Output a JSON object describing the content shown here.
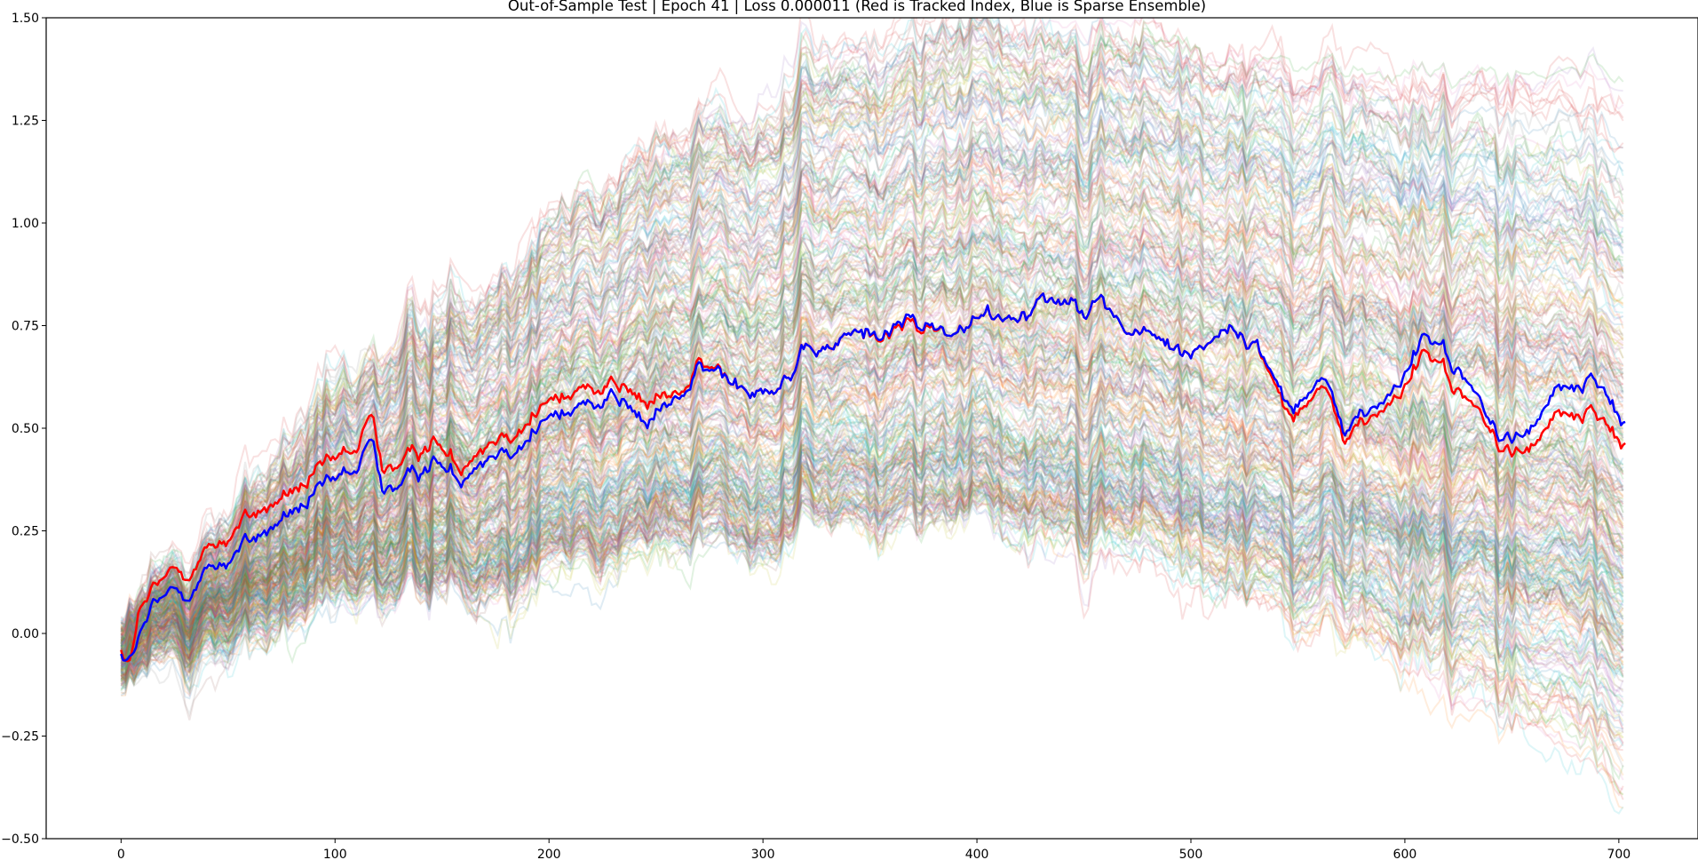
{
  "chart_data": {
    "type": "line",
    "title": "Out-of-Sample Test | Epoch 41 | Loss 0.000011 (Red is Tracked Index, Blue is Sparse Ensemble)",
    "xlabel": "",
    "ylabel": "",
    "xlim": [
      -35,
      737
    ],
    "ylim": [
      -0.5,
      1.5
    ],
    "x_ticks": [
      0,
      100,
      200,
      300,
      400,
      500,
      600,
      700
    ],
    "x_tick_labels": [
      "0",
      "100",
      "200",
      "300",
      "400",
      "500",
      "600",
      "700"
    ],
    "y_ticks": [
      -0.5,
      -0.25,
      0.0,
      0.25,
      0.5,
      0.75,
      1.0,
      1.25,
      1.5
    ],
    "y_tick_labels": [
      "−0.50",
      "−0.25",
      "0.00",
      "0.25",
      "0.50",
      "0.75",
      "1.00",
      "1.25",
      "1.50"
    ],
    "grid": false,
    "n_points": 704,
    "series": [
      {
        "color": "#ff0000",
        "linewidth": 2.5,
        "keypoints": [
          [
            0,
            -0.04
          ],
          [
            4,
            -0.08
          ],
          [
            8,
            0.04
          ],
          [
            15,
            0.09
          ],
          [
            25,
            0.14
          ],
          [
            40,
            0.2
          ],
          [
            60,
            0.28
          ],
          [
            80,
            0.34
          ],
          [
            100,
            0.4
          ],
          [
            110,
            0.44
          ],
          [
            117,
            0.52
          ],
          [
            122,
            0.41
          ],
          [
            135,
            0.41
          ],
          [
            145,
            0.48
          ],
          [
            158,
            0.4
          ],
          [
            165,
            0.47
          ],
          [
            185,
            0.52
          ],
          [
            200,
            0.56
          ],
          [
            215,
            0.59
          ],
          [
            230,
            0.63
          ],
          [
            245,
            0.55
          ],
          [
            260,
            0.58
          ],
          [
            270,
            0.64
          ],
          [
            285,
            0.62
          ],
          [
            300,
            0.62
          ],
          [
            320,
            0.66
          ],
          [
            345,
            0.73
          ],
          [
            370,
            0.75
          ],
          [
            385,
            0.73
          ],
          [
            400,
            0.75
          ],
          [
            420,
            0.79
          ],
          [
            430,
            0.83
          ],
          [
            445,
            0.82
          ],
          [
            455,
            0.83
          ],
          [
            470,
            0.74
          ],
          [
            485,
            0.71
          ],
          [
            500,
            0.68
          ],
          [
            515,
            0.76
          ],
          [
            530,
            0.7
          ],
          [
            545,
            0.55
          ],
          [
            560,
            0.6
          ],
          [
            572,
            0.48
          ],
          [
            590,
            0.54
          ],
          [
            610,
            0.68
          ],
          [
            625,
            0.6
          ],
          [
            640,
            0.48
          ],
          [
            655,
            0.43
          ],
          [
            670,
            0.52
          ],
          [
            690,
            0.52
          ],
          [
            704,
            0.48
          ]
        ]
      },
      {
        "color": "#0000ff",
        "linewidth": 2.5,
        "keypoints": [
          [
            0,
            -0.05
          ],
          [
            4,
            -0.07
          ],
          [
            8,
            -0.02
          ],
          [
            15,
            0.05
          ],
          [
            25,
            0.09
          ],
          [
            40,
            0.15
          ],
          [
            60,
            0.22
          ],
          [
            80,
            0.29
          ],
          [
            100,
            0.35
          ],
          [
            110,
            0.39
          ],
          [
            117,
            0.46
          ],
          [
            122,
            0.36
          ],
          [
            135,
            0.36
          ],
          [
            145,
            0.43
          ],
          [
            158,
            0.37
          ],
          [
            165,
            0.44
          ],
          [
            185,
            0.48
          ],
          [
            200,
            0.52
          ],
          [
            215,
            0.55
          ],
          [
            230,
            0.6
          ],
          [
            245,
            0.5
          ],
          [
            260,
            0.57
          ],
          [
            270,
            0.63
          ],
          [
            285,
            0.62
          ],
          [
            300,
            0.62
          ],
          [
            320,
            0.66
          ],
          [
            345,
            0.73
          ],
          [
            370,
            0.76
          ],
          [
            385,
            0.73
          ],
          [
            400,
            0.75
          ],
          [
            420,
            0.79
          ],
          [
            430,
            0.83
          ],
          [
            445,
            0.82
          ],
          [
            455,
            0.83
          ],
          [
            470,
            0.74
          ],
          [
            485,
            0.71
          ],
          [
            500,
            0.68
          ],
          [
            515,
            0.76
          ],
          [
            530,
            0.7
          ],
          [
            545,
            0.57
          ],
          [
            560,
            0.62
          ],
          [
            572,
            0.5
          ],
          [
            590,
            0.56
          ],
          [
            610,
            0.72
          ],
          [
            625,
            0.65
          ],
          [
            640,
            0.5
          ],
          [
            655,
            0.47
          ],
          [
            670,
            0.58
          ],
          [
            690,
            0.6
          ],
          [
            704,
            0.53
          ]
        ]
      }
    ],
    "background_series": {
      "count": 340,
      "opacity": 0.14,
      "colors": [
        "#1f77b4",
        "#ff7f0e",
        "#2ca02c",
        "#d62728",
        "#9467bd",
        "#8c564b",
        "#e377c2",
        "#7f7f7f",
        "#bcbd22",
        "#17becf"
      ],
      "start_range": [
        -0.12,
        0.02
      ],
      "peak_near_x": 440,
      "peak_range": [
        0.3,
        1.5
      ],
      "end_range": [
        -0.4,
        1.33
      ]
    }
  }
}
